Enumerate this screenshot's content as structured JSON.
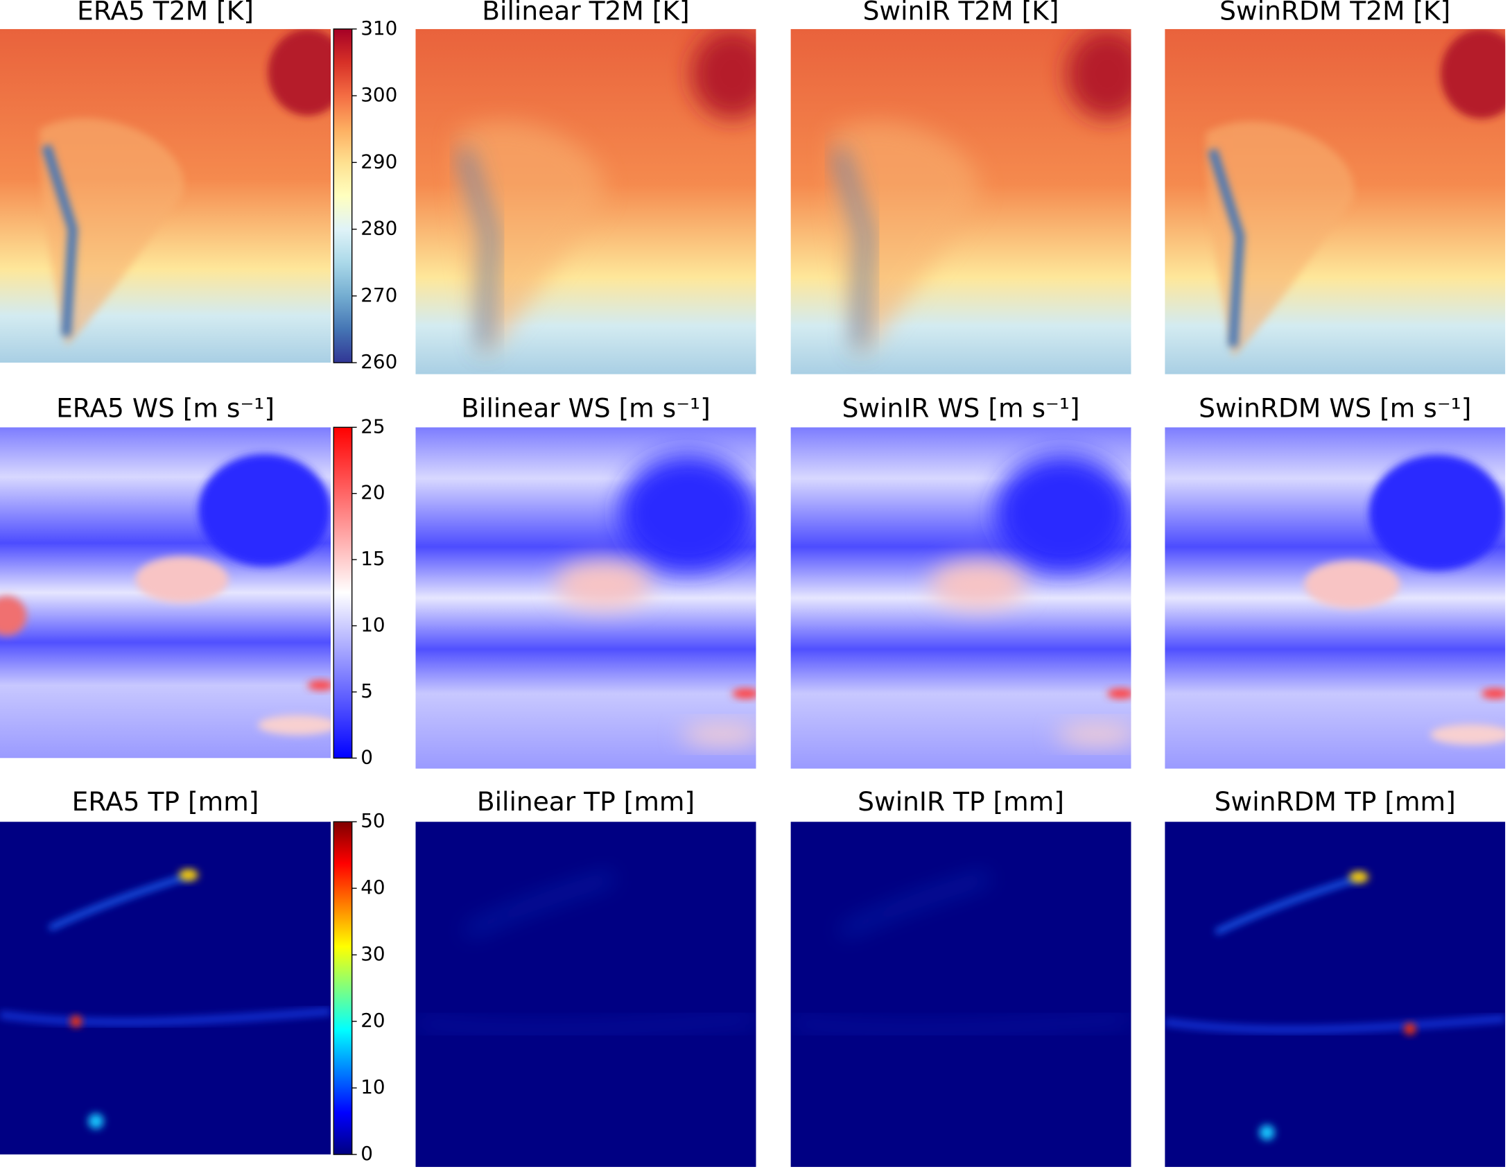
{
  "chart_data": {
    "type": "map-grid",
    "rows": [
      {
        "titles": [
          "ERA5 T2M [K]",
          "Bilinear T2M [K]",
          "SwinIR T2M [K]",
          "SwinRDM T2M [K]"
        ],
        "colorbar": {
          "lim": [
            260,
            310
          ],
          "ticks": [
            260,
            270,
            280,
            290,
            300,
            310
          ],
          "colors": [
            "#313695",
            "#4575b4",
            "#74add1",
            "#abd9e9",
            "#e0f3f8",
            "#ffffbf",
            "#fee090",
            "#fdae61",
            "#f46d43",
            "#d73027",
            "#a50026"
          ]
        }
      },
      {
        "titles": [
          "ERA5 WS [m s⁻¹]",
          "Bilinear WS [m s⁻¹]",
          "SwinIR WS [m s⁻¹]",
          "SwinRDM WS [m s⁻¹]"
        ],
        "colorbar": {
          "lim": [
            0,
            25
          ],
          "ticks": [
            0,
            5,
            10,
            15,
            20,
            25
          ],
          "colors": [
            "#0000ff",
            "#ffffff",
            "#ff0000"
          ]
        }
      },
      {
        "titles": [
          "ERA5 TP [mm]",
          "Bilinear TP [mm]",
          "SwinIR TP [mm]",
          "SwinRDM TP [mm]"
        ],
        "colorbar": {
          "lim": [
            0,
            50
          ],
          "ticks": [
            0,
            10,
            20,
            30,
            40,
            50
          ],
          "colors": [
            "#00007f",
            "#0000ff",
            "#007fff",
            "#00ffff",
            "#7fff7f",
            "#ffff00",
            "#ff7f00",
            "#ff0000",
            "#7f0000"
          ]
        }
      }
    ]
  }
}
